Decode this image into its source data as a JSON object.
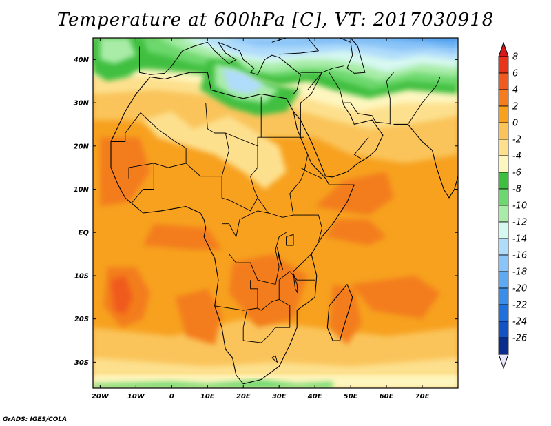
{
  "title": "Temperature at 600hPa [C], VT: 2017030918",
  "credit": "GrADS: IGES/COLA",
  "map": {
    "lon_range": [
      -22,
      80
    ],
    "lat_range": [
      -36,
      45
    ],
    "lat_ticks": [
      {
        "lat": 40,
        "label": "40N"
      },
      {
        "lat": 30,
        "label": "30N"
      },
      {
        "lat": 20,
        "label": "20N"
      },
      {
        "lat": 10,
        "label": "10N"
      },
      {
        "lat": 0,
        "label": "EQ"
      },
      {
        "lat": -10,
        "label": "10S"
      },
      {
        "lat": -20,
        "label": "20S"
      },
      {
        "lat": -30,
        "label": "30S"
      }
    ],
    "lon_ticks": [
      {
        "lon": -20,
        "label": "20W"
      },
      {
        "lon": -10,
        "label": "10W"
      },
      {
        "lon": 0,
        "label": "0"
      },
      {
        "lon": 10,
        "label": "10E"
      },
      {
        "lon": 20,
        "label": "20E"
      },
      {
        "lon": 30,
        "label": "30E"
      },
      {
        "lon": 40,
        "label": "40E"
      },
      {
        "lon": 50,
        "label": "50E"
      },
      {
        "lon": 60,
        "label": "60E"
      },
      {
        "lon": 70,
        "label": "70E"
      }
    ]
  },
  "colorbar": {
    "levels": [
      {
        "label": "8",
        "color": "#e8341b"
      },
      {
        "label": "6",
        "color": "#f05a1e"
      },
      {
        "label": "4",
        "color": "#f37d1f"
      },
      {
        "label": "2",
        "color": "#f7a11f"
      },
      {
        "label": "0",
        "color": "#fac45a"
      },
      {
        "label": "-2",
        "color": "#fde08e"
      },
      {
        "label": "-4",
        "color": "#fef6bf"
      },
      {
        "label": "-6",
        "color": "#3fbf3f"
      },
      {
        "label": "-8",
        "color": "#6dd86d"
      },
      {
        "label": "-10",
        "color": "#a8eca8"
      },
      {
        "label": "-12",
        "color": "#d6f8f0"
      },
      {
        "label": "-14",
        "color": "#b0dcfb"
      },
      {
        "label": "-16",
        "color": "#8bc4f8"
      },
      {
        "label": "-18",
        "color": "#5ea9f2"
      },
      {
        "label": "-20",
        "color": "#3a8ee9"
      },
      {
        "label": "-22",
        "color": "#1f6fdc"
      },
      {
        "label": "-24",
        "color": "#1252c4"
      },
      {
        "label": "-26",
        "color": "#0a2b8e"
      }
    ],
    "top_arrow_color": "#d7191c",
    "bottom_arrow_color": "#e9e6ff"
  },
  "field_colors": {
    "ocean_warm": "#f7a11f",
    "hot": "#f37d1f",
    "very_hot": "#f05a1e",
    "mild": "#fac45a",
    "cool": "#fde08e",
    "cooler": "#fef6bf",
    "green_dark": "#3fbf3f",
    "green_mid": "#6dd86d",
    "green_light": "#a8eca8",
    "cyan_light": "#d6f8f0",
    "blue_light": "#b0dcfb",
    "blue_mid": "#8bc4f8",
    "blue": "#5ea9f2",
    "blue_dark": "#3a8ee9",
    "navy": "#1f6fdc"
  }
}
